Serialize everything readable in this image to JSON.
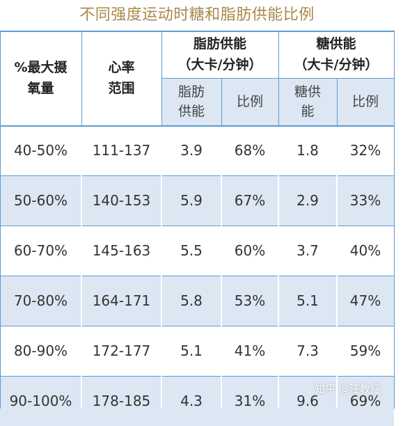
{
  "title": "不同强度运动时糖和脂肪供能比例",
  "header": {
    "vo2max": "%最大摄\n氧量",
    "heart_rate": "心率\n范围",
    "fat_group": "脂肪供能\n（大卡/分钟）",
    "sugar_group": "糖供能\n（大卡/分钟）",
    "fat_energy": "脂肪\n供能",
    "fat_ratio": "比例",
    "sugar_energy": "糖供\n能",
    "sugar_ratio": "比例"
  },
  "rows": [
    {
      "vo2max": "40-50%",
      "heart_rate": "111-137",
      "fat_energy": "3.9",
      "fat_ratio": "68%",
      "sugar_energy": "1.8",
      "sugar_ratio": "32%"
    },
    {
      "vo2max": "50-60%",
      "heart_rate": "140-153",
      "fat_energy": "5.9",
      "fat_ratio": "67%",
      "sugar_energy": "2.9",
      "sugar_ratio": "33%"
    },
    {
      "vo2max": "60-70%",
      "heart_rate": "145-163",
      "fat_energy": "5.5",
      "fat_ratio": "60%",
      "sugar_energy": "3.7",
      "sugar_ratio": "40%"
    },
    {
      "vo2max": "70-80%",
      "heart_rate": "164-171",
      "fat_energy": "5.8",
      "fat_ratio": "53%",
      "sugar_energy": "5.1",
      "sugar_ratio": "47%"
    },
    {
      "vo2max": "80-90%",
      "heart_rate": "172-177",
      "fat_energy": "5.1",
      "fat_ratio": "41%",
      "sugar_energy": "7.3",
      "sugar_ratio": "59%"
    },
    {
      "vo2max": "90-100%",
      "heart_rate": "178-185",
      "fat_energy": "4.3",
      "fat_ratio": "31%",
      "sugar_energy": "9.6",
      "sugar_ratio": "69%"
    }
  ],
  "watermark": "知乎 @汪教瘦",
  "colors": {
    "title": "#a8884a",
    "band": "#dce7f3",
    "border": "#5b9bd5"
  }
}
